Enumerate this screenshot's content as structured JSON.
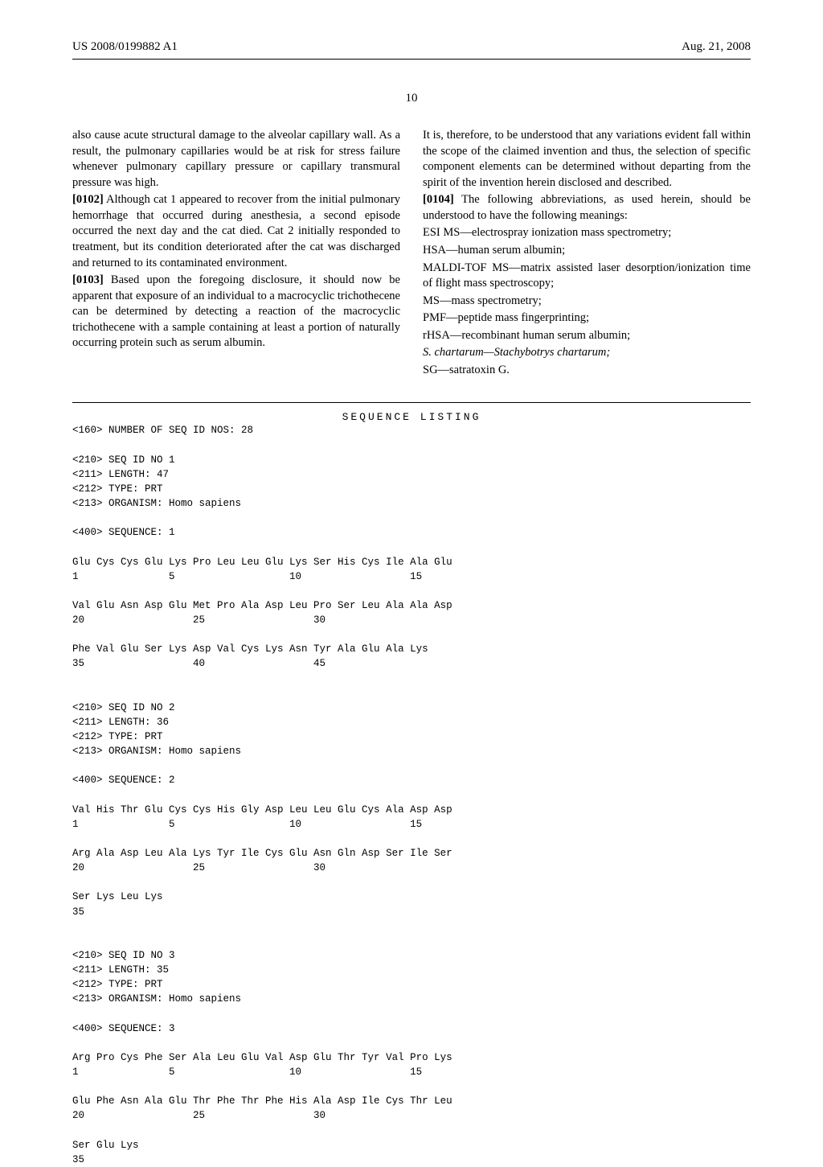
{
  "header": {
    "pub_number": "US 2008/0199882 A1",
    "date": "Aug. 21, 2008"
  },
  "page_number": "10",
  "col_left": {
    "p1": "also cause acute structural damage to the alveolar capillary wall. As a result, the pulmonary capillaries would be at risk for stress failure whenever pulmonary capillary pressure or capillary transmural pressure was high.",
    "p2_num": "[0102]",
    "p2": "    Although cat 1 appeared to recover from the initial pulmonary hemorrhage that occurred during anesthesia, a second episode occurred the next day and the cat died. Cat 2 initially responded to treatment, but its condition deteriorated after the cat was discharged and returned to its contaminated environment.",
    "p3_num": "[0103]",
    "p3": "    Based upon the foregoing disclosure, it should now be apparent that exposure of an individual to a macrocyclic trichothecene can be determined by detecting a reaction of the macrocyclic trichothecene with a sample containing at least a portion of naturally occurring protein such as serum albumin."
  },
  "col_right": {
    "p1": "It is, therefore, to be understood that any variations evident fall within the scope of the claimed invention and thus, the selection of specific component elements can be determined without departing from the spirit of the invention herein disclosed and described.",
    "p2_num": "[0104]",
    "p2": "    The following abbreviations, as used herein, should be understood to have the following meanings:",
    "abbr": [
      "ESI MS—electrospray ionization mass spectrometry;",
      "HSA—human serum albumin;",
      "MALDI-TOF MS—matrix assisted laser desorption/ionization time of flight mass spectroscopy;",
      "MS—mass spectrometry;",
      "PMF—peptide mass fingerprinting;",
      "rHSA—recombinant human serum albumin;"
    ],
    "abbr_italic": "S. chartarum—Stachybotrys chartarum;",
    "abbr_last": "SG—satratoxin G."
  },
  "seq_title": "SEQUENCE LISTING",
  "seq_body": "<160> NUMBER OF SEQ ID NOS: 28\n\n<210> SEQ ID NO 1\n<211> LENGTH: 47\n<212> TYPE: PRT\n<213> ORGANISM: Homo sapiens\n\n<400> SEQUENCE: 1\n\nGlu Cys Cys Glu Lys Pro Leu Leu Glu Lys Ser His Cys Ile Ala Glu\n1               5                   10                  15\n\nVal Glu Asn Asp Glu Met Pro Ala Asp Leu Pro Ser Leu Ala Ala Asp\n20                  25                  30\n\nPhe Val Glu Ser Lys Asp Val Cys Lys Asn Tyr Ala Glu Ala Lys\n35                  40                  45\n\n\n<210> SEQ ID NO 2\n<211> LENGTH: 36\n<212> TYPE: PRT\n<213> ORGANISM: Homo sapiens\n\n<400> SEQUENCE: 2\n\nVal His Thr Glu Cys Cys His Gly Asp Leu Leu Glu Cys Ala Asp Asp\n1               5                   10                  15\n\nArg Ala Asp Leu Ala Lys Tyr Ile Cys Glu Asn Gln Asp Ser Ile Ser\n20                  25                  30\n\nSer Lys Leu Lys\n35\n\n\n<210> SEQ ID NO 3\n<211> LENGTH: 35\n<212> TYPE: PRT\n<213> ORGANISM: Homo sapiens\n\n<400> SEQUENCE: 3\n\nArg Pro Cys Phe Ser Ala Leu Glu Val Asp Glu Thr Tyr Val Pro Lys\n1               5                   10                  15\n\nGlu Phe Asn Ala Glu Thr Phe Thr Phe His Ala Asp Ile Cys Thr Leu\n20                  25                  30\n\nSer Glu Lys\n35"
}
